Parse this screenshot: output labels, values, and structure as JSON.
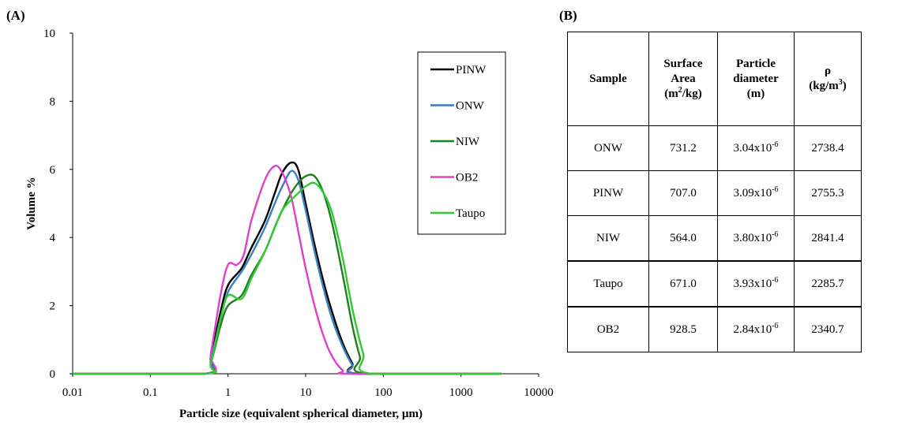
{
  "panel_a_label": "(A)",
  "panel_b_label": "(B)",
  "chart_data": {
    "type": "line",
    "xlabel": "Particle size (equivalent spherical diameter, µm)",
    "ylabel": "Volume %",
    "x_scale": "log",
    "xlim": [
      0.01,
      10000
    ],
    "ylim": [
      0,
      10
    ],
    "x_ticks": [
      0.01,
      0.1,
      1,
      10,
      100,
      1000,
      10000
    ],
    "x_tick_labels": [
      "0.01",
      "0.1",
      "1",
      "10",
      "100",
      "1000",
      "10000"
    ],
    "y_ticks": [
      0,
      2,
      4,
      6,
      8,
      10
    ],
    "y_tick_labels": [
      "0",
      "2",
      "4",
      "6",
      "8",
      "10"
    ],
    "legend_position": "top-right",
    "series": [
      {
        "name": "PINW",
        "color": "#000000",
        "x": [
          0.01,
          0.5,
          0.6,
          0.8,
          1.0,
          1.5,
          2.0,
          3.0,
          4.0,
          5.0,
          6.5,
          8.0,
          10.0,
          13.0,
          17.0,
          22.0,
          30.0,
          40.0,
          50.0,
          3300
        ],
        "y": [
          0,
          0,
          0.5,
          1.8,
          2.6,
          3.1,
          3.7,
          4.5,
          5.3,
          5.9,
          6.2,
          6.0,
          5.0,
          3.8,
          2.7,
          1.8,
          0.9,
          0.3,
          0,
          0
        ]
      },
      {
        "name": "ONW",
        "color": "#3a7ec4",
        "x": [
          0.01,
          0.5,
          0.6,
          0.8,
          1.0,
          1.5,
          2.0,
          3.0,
          4.0,
          5.0,
          6.5,
          8.0,
          10.0,
          13.0,
          17.0,
          22.0,
          30.0,
          40.0,
          50.0,
          3300
        ],
        "y": [
          0,
          0,
          0.4,
          1.6,
          2.4,
          3.0,
          3.5,
          4.3,
          5.0,
          5.5,
          5.95,
          5.7,
          4.8,
          3.6,
          2.5,
          1.6,
          0.8,
          0.25,
          0,
          0
        ]
      },
      {
        "name": "NIW",
        "color": "#1e7f1e",
        "x": [
          0.01,
          0.5,
          0.6,
          0.8,
          1.0,
          1.5,
          2.0,
          3.0,
          4.0,
          5.0,
          6.5,
          8.0,
          10.0,
          13.0,
          17.0,
          22.0,
          30.0,
          40.0,
          50.0,
          60.0,
          3300
        ],
        "y": [
          0,
          0,
          0.3,
          1.4,
          2.0,
          2.3,
          2.9,
          3.6,
          4.3,
          4.8,
          5.3,
          5.6,
          5.8,
          5.8,
          5.3,
          4.4,
          2.9,
          1.4,
          0.5,
          0,
          0
        ]
      },
      {
        "name": "OB2",
        "color": "#e040c8",
        "x": [
          0.01,
          0.5,
          0.6,
          0.8,
          1.0,
          1.3,
          1.6,
          2.0,
          3.0,
          4.0,
          5.0,
          6.5,
          8.0,
          10.0,
          13.0,
          17.0,
          22.0,
          30.0,
          40.0,
          3300
        ],
        "y": [
          0,
          0,
          0.6,
          2.3,
          3.2,
          3.2,
          3.5,
          4.5,
          5.7,
          6.1,
          5.9,
          5.2,
          4.2,
          3.1,
          2.0,
          1.1,
          0.5,
          0.1,
          0,
          0
        ]
      },
      {
        "name": "Taupo",
        "color": "#32c832",
        "x": [
          0.01,
          0.5,
          0.6,
          0.8,
          1.0,
          1.5,
          2.0,
          3.0,
          4.0,
          5.0,
          6.5,
          8.0,
          10.0,
          13.0,
          17.0,
          22.0,
          30.0,
          40.0,
          55.0,
          70.0,
          3300
        ],
        "y": [
          0,
          0,
          0.3,
          1.6,
          2.3,
          2.2,
          2.8,
          3.6,
          4.3,
          4.8,
          5.1,
          5.3,
          5.5,
          5.6,
          5.3,
          4.7,
          3.4,
          1.9,
          0.6,
          0,
          0
        ]
      }
    ]
  },
  "table": {
    "headers": {
      "sample": "Sample",
      "surface_area": "Surface Area",
      "surface_area_unit_pre": "(m",
      "surface_area_unit_sup": "2",
      "surface_area_unit_post": "/kg)",
      "particle_diameter": "Particle diameter",
      "particle_diameter_unit": "(m)",
      "rho": "ρ",
      "rho_unit_pre": "(kg/m",
      "rho_unit_sup": "3",
      "rho_unit_post": ")"
    },
    "rows": [
      {
        "sample": "ONW",
        "area": "731.2",
        "dia": "3.04x10",
        "exp": "-6",
        "rho": "2738.4"
      },
      {
        "sample": "PINW",
        "area": "707.0",
        "dia": "3.09x10",
        "exp": "-6",
        "rho": "2755.3"
      },
      {
        "sample": "NIW",
        "area": "564.0",
        "dia": "3.80x10",
        "exp": "-6",
        "rho": "2841.4"
      },
      {
        "sample": "Taupo",
        "area": "671.0",
        "dia": "3.93x10",
        "exp": "-6",
        "rho": "2285.7"
      },
      {
        "sample": "OB2",
        "area": "928.5",
        "dia": "2.84x10",
        "exp": "-6",
        "rho": "2340.7"
      }
    ]
  }
}
